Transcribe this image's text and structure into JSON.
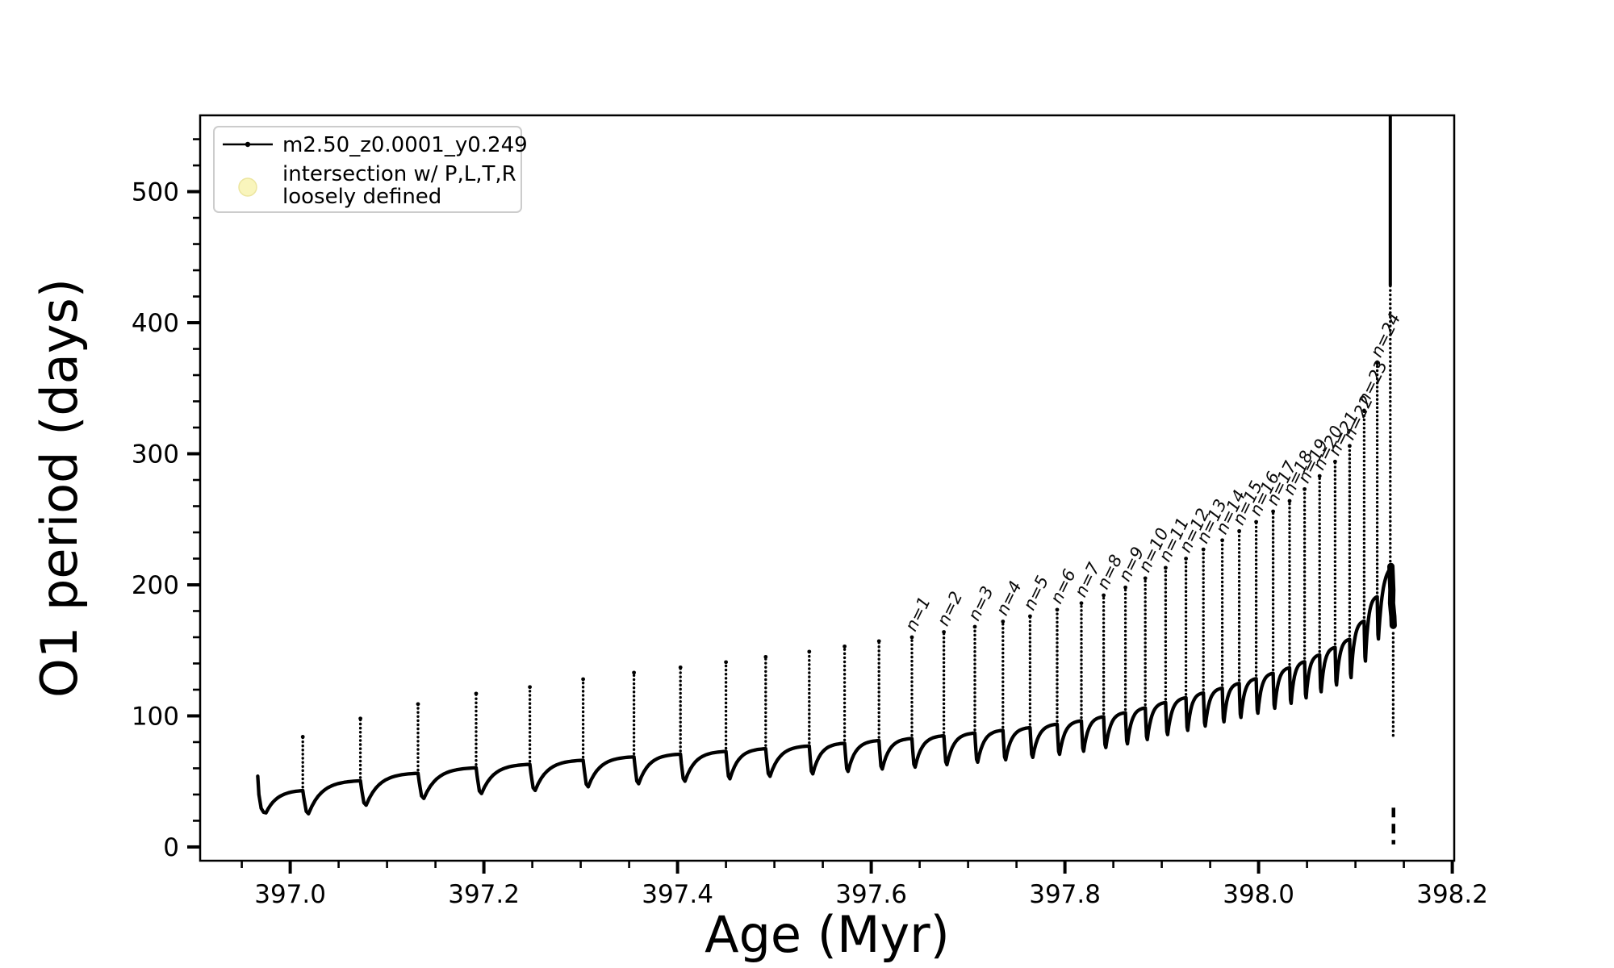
{
  "figure": {
    "background": "#ffffff",
    "frame_color": "#000000"
  },
  "chart_data": {
    "type": "line",
    "title": "",
    "xlabel": "Age (Myr)",
    "ylabel": "O1 period (days)",
    "x_unit": "Myr",
    "y_unit": "days",
    "xlim": [
      396.907,
      398.202
    ],
    "ylim": [
      -10.5,
      558.2
    ],
    "grid": false,
    "legend_position": "upper left",
    "series": [
      {
        "name": "m2.50_z0.0001_y0.249",
        "color": "#000000",
        "style": "solid line with point markers"
      }
    ],
    "x_ticks": {
      "major": [
        397.0,
        397.2,
        397.4,
        397.6,
        397.8,
        398.0,
        398.2
      ],
      "labels": [
        "397.0",
        "397.2",
        "397.4",
        "397.6",
        "397.8",
        "398.0",
        "398.2"
      ],
      "minor_step": 0.05
    },
    "y_ticks": {
      "major": [
        0,
        100,
        200,
        300,
        400,
        500
      ],
      "labels": [
        "0",
        "100",
        "200",
        "300",
        "400",
        "500"
      ],
      "minor_step": 20
    },
    "morphology": "Relaxation-oscillation sawtooth: slow log-like rise of O1 period each cycle, narrow upward spike to a peak, sharp dip below baseline, then recovery; spike peaks and baseline rise toward a terminal collapse.",
    "start_point": {
      "age": 396.9665,
      "value": 54,
      "dip_value": 26
    },
    "baseline_fraction_of_peak": 0.52,
    "dip_rule": "dip = 0.9*baseline - 14 (days)",
    "pulses": [
      {
        "age": 397.013,
        "peak": 84,
        "label": null
      },
      {
        "age": 397.0725,
        "peak": 98,
        "label": null
      },
      {
        "age": 397.132,
        "peak": 109,
        "label": null
      },
      {
        "age": 397.192,
        "peak": 117,
        "label": null
      },
      {
        "age": 397.2475,
        "peak": 122,
        "label": null
      },
      {
        "age": 397.3025,
        "peak": 128,
        "label": null
      },
      {
        "age": 397.355,
        "peak": 133,
        "label": null
      },
      {
        "age": 397.403,
        "peak": 137,
        "label": null
      },
      {
        "age": 397.45,
        "peak": 141,
        "label": null
      },
      {
        "age": 397.491,
        "peak": 145,
        "label": null
      },
      {
        "age": 397.536,
        "peak": 149,
        "label": null
      },
      {
        "age": 397.5725,
        "peak": 153,
        "label": null
      },
      {
        "age": 397.608,
        "peak": 157,
        "label": null
      },
      {
        "age": 397.642,
        "peak": 160,
        "label": "n=1"
      },
      {
        "age": 397.675,
        "peak": 164,
        "label": "n=2"
      },
      {
        "age": 397.707,
        "peak": 168,
        "label": "n=3"
      },
      {
        "age": 397.736,
        "peak": 172,
        "label": "n=4"
      },
      {
        "age": 397.764,
        "peak": 176,
        "label": "n=5"
      },
      {
        "age": 397.792,
        "peak": 181,
        "label": "n=6"
      },
      {
        "age": 397.817,
        "peak": 186,
        "label": "n=7"
      },
      {
        "age": 397.84,
        "peak": 192,
        "label": "n=8"
      },
      {
        "age": 397.8625,
        "peak": 198,
        "label": "n=9"
      },
      {
        "age": 397.883,
        "peak": 205,
        "label": "n=10"
      },
      {
        "age": 397.904,
        "peak": 213,
        "label": "n=11"
      },
      {
        "age": 397.925,
        "peak": 220,
        "label": "n=12"
      },
      {
        "age": 397.943,
        "peak": 227,
        "label": "n=13"
      },
      {
        "age": 397.9625,
        "peak": 234,
        "label": "n=14"
      },
      {
        "age": 397.98,
        "peak": 241,
        "label": "n=15"
      },
      {
        "age": 397.9975,
        "peak": 248,
        "label": "n=16"
      },
      {
        "age": 398.015,
        "peak": 256,
        "label": "n=17"
      },
      {
        "age": 398.032,
        "peak": 264,
        "label": "n=18"
      },
      {
        "age": 398.0475,
        "peak": 273,
        "label": "n=19"
      },
      {
        "age": 398.063,
        "peak": 283,
        "label": "n=20"
      },
      {
        "age": 398.079,
        "peak": 294,
        "label": "n=21"
      },
      {
        "age": 398.094,
        "peak": 306,
        "label": "n=22"
      },
      {
        "age": 398.109,
        "peak": 333,
        "label": "n=23"
      },
      {
        "age": 398.1225,
        "peak": 369,
        "label": "n=24"
      }
    ],
    "final_collapse": {
      "age": 398.136,
      "apex_value": 216,
      "top_value": 558,
      "blob_top": 214,
      "blob_bottom": 169,
      "dotted_drop": [
        163,
        85
      ],
      "tail": [
        30,
        2
      ]
    }
  },
  "legend": {
    "position": "upper left",
    "entries": [
      {
        "marker": "line-dot",
        "color": "#000000",
        "label": "m2.50_z0.0001_y0.249"
      },
      {
        "marker": "circle",
        "fill": "#f9f5bc",
        "edge": "#ece5a0",
        "label_lines": [
          "intersection w/ P,L,T,R",
          "loosely defined"
        ]
      }
    ]
  }
}
